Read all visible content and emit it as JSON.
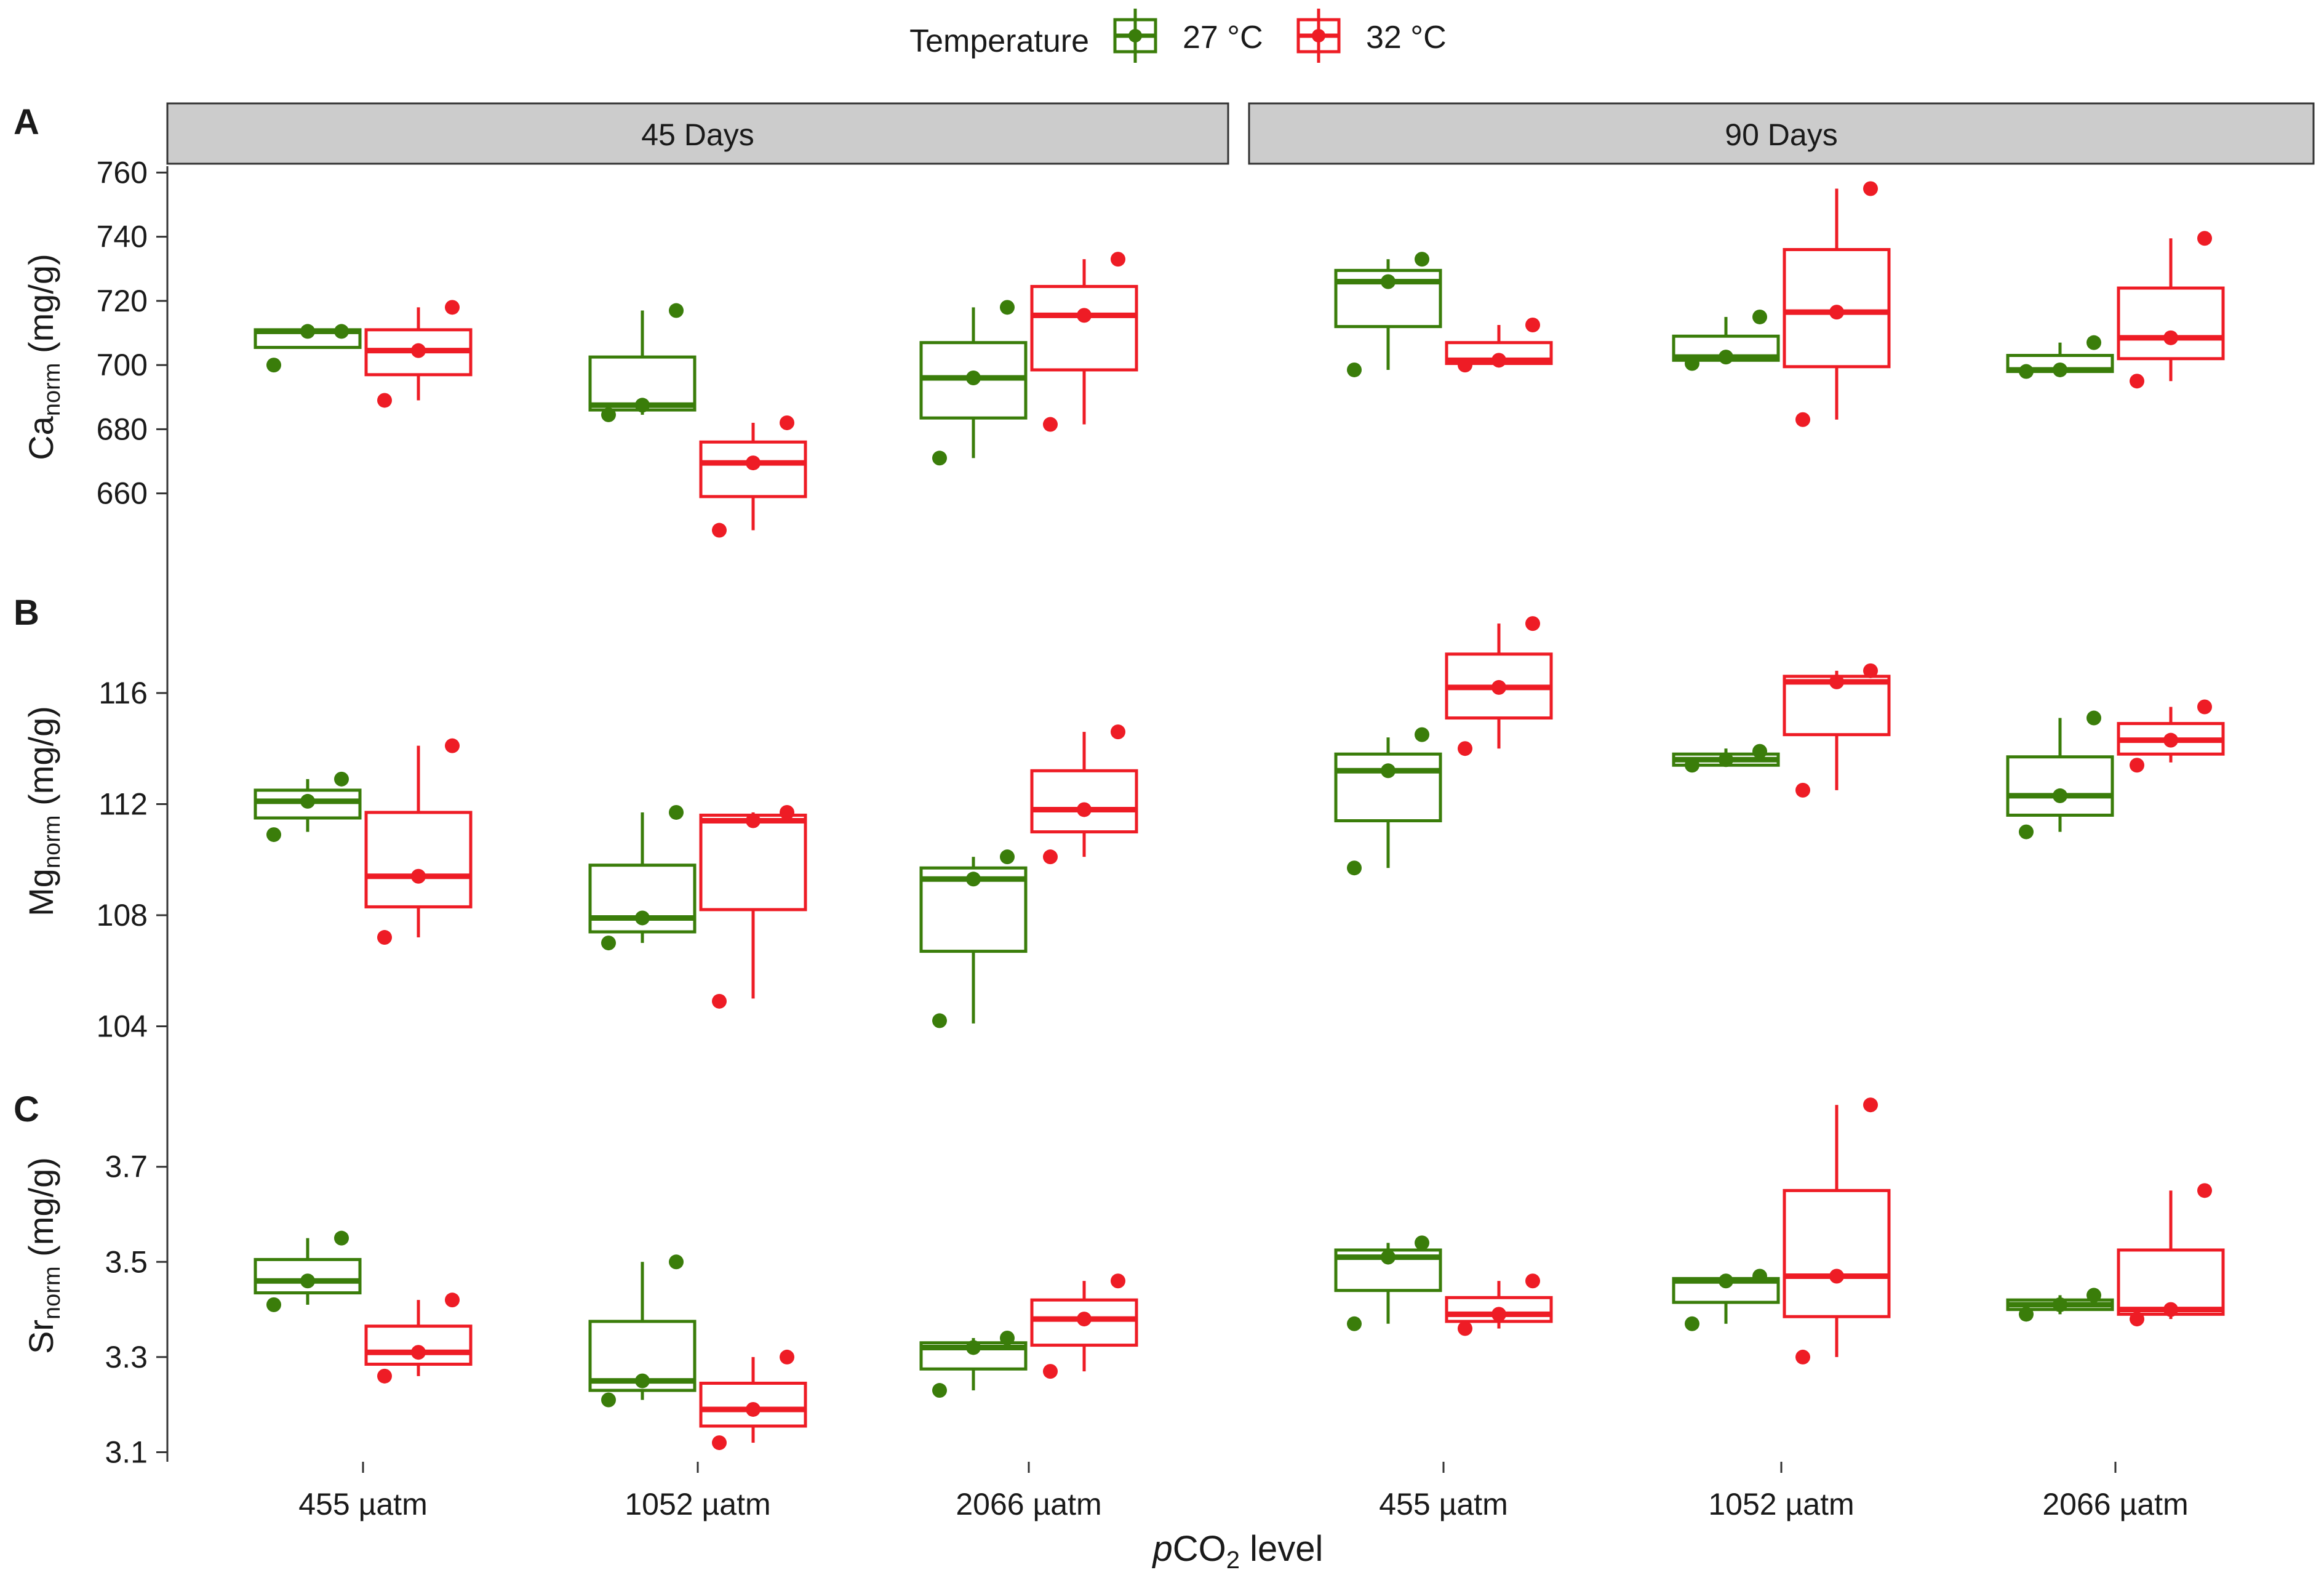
{
  "chart_data": {
    "type": "boxplot",
    "x_title_italic": "p",
    "x_title_main": "CO",
    "x_title_sub": "2",
    "x_title_tail": " level",
    "legend": {
      "title": "Temperature",
      "entries": [
        {
          "label": "27 °C",
          "color": "#3a7d0a"
        },
        {
          "label": "32 °C",
          "color": "#ee1c25"
        }
      ]
    },
    "facets": [
      "45 Days",
      "90 Days"
    ],
    "categories": [
      "455 µatm",
      "1052 µatm",
      "2066 µatm"
    ],
    "panels": [
      {
        "label": "A",
        "ylabel_main": "Ca",
        "ylabel_sub": "norm",
        "ylabel_tail": " (mg/g)",
        "ylim": [
          644,
          762
        ],
        "yticks": [
          660,
          680,
          700,
          720,
          740,
          760
        ],
        "ytick_labels": [
          "660",
          "680",
          "700",
          "720",
          "740",
          "760"
        ],
        "boxes": [
          [
            [
              {
                "q1": 705.5,
                "med": 710.5,
                "q3": 711,
                "lo": 705.5,
                "hi": 711,
                "pts": [
                  700,
                  710.5,
                  710.5
                ]
              },
              {
                "q1": 697,
                "med": 704.5,
                "q3": 711,
                "lo": 689,
                "hi": 718,
                "pts": [
                  689,
                  704.5,
                  718
                ]
              }
            ],
            [
              {
                "q1": 686,
                "med": 687.5,
                "q3": 702.5,
                "lo": 684.5,
                "hi": 717,
                "pts": [
                  684.5,
                  687.5,
                  717
                ]
              },
              {
                "q1": 659,
                "med": 669.5,
                "q3": 676,
                "lo": 648.5,
                "hi": 682,
                "pts": [
                  648.5,
                  669.5,
                  682
                ]
              }
            ],
            [
              {
                "q1": 683.5,
                "med": 696,
                "q3": 707,
                "lo": 671,
                "hi": 718,
                "pts": [
                  671,
                  696,
                  718
                ]
              },
              {
                "q1": 698.5,
                "med": 715.5,
                "q3": 724.5,
                "lo": 681.5,
                "hi": 733,
                "pts": [
                  681.5,
                  715.5,
                  733
                ]
              }
            ]
          ],
          [
            [
              {
                "q1": 712,
                "med": 726,
                "q3": 729.5,
                "lo": 698.5,
                "hi": 733,
                "pts": [
                  698.5,
                  726,
                  733
                ]
              },
              {
                "q1": 700.5,
                "med": 701.5,
                "q3": 707,
                "lo": 700,
                "hi": 712.5,
                "pts": [
                  700,
                  701.5,
                  712.5
                ]
              }
            ],
            [
              {
                "q1": 701.5,
                "med": 702.5,
                "q3": 709,
                "lo": 700.5,
                "hi": 715,
                "pts": [
                  700.5,
                  702.5,
                  715
                ]
              },
              {
                "q1": 699.5,
                "med": 716.5,
                "q3": 736,
                "lo": 683,
                "hi": 755,
                "pts": [
                  683,
                  716.5,
                  755
                ]
              }
            ],
            [
              {
                "q1": 698,
                "med": 698.5,
                "q3": 703,
                "lo": 698,
                "hi": 707,
                "pts": [
                  698,
                  698.5,
                  707
                ]
              },
              {
                "q1": 702,
                "med": 708.5,
                "q3": 724,
                "lo": 695,
                "hi": 739.5,
                "pts": [
                  695,
                  708.5,
                  739.5
                ]
              }
            ]
          ]
        ]
      },
      {
        "label": "B",
        "ylabel_main": "Mg",
        "ylabel_sub": "norm",
        "ylabel_tail": " (mg/g)",
        "ylim": [
          103.5,
          119.5
        ],
        "yticks": [
          104,
          108,
          112,
          116
        ],
        "ytick_labels": [
          "104",
          "108",
          "112",
          "116"
        ],
        "boxes": [
          [
            [
              {
                "q1": 111.5,
                "med": 112.1,
                "q3": 112.5,
                "lo": 111,
                "hi": 112.9,
                "pts": [
                  110.9,
                  112.1,
                  112.9
                ]
              },
              {
                "q1": 108.3,
                "med": 109.4,
                "q3": 111.7,
                "lo": 107.2,
                "hi": 114.1,
                "pts": [
                  107.2,
                  109.4,
                  114.1
                ]
              }
            ],
            [
              {
                "q1": 107.4,
                "med": 107.9,
                "q3": 109.8,
                "lo": 107,
                "hi": 111.7,
                "pts": [
                  107,
                  107.9,
                  111.7
                ]
              },
              {
                "q1": 108.2,
                "med": 111.4,
                "q3": 111.6,
                "lo": 105,
                "hi": 111.7,
                "pts": [
                  104.9,
                  111.4,
                  111.7
                ]
              }
            ],
            [
              {
                "q1": 106.7,
                "med": 109.3,
                "q3": 109.7,
                "lo": 104.1,
                "hi": 110.1,
                "pts": [
                  104.2,
                  109.3,
                  110.1
                ]
              },
              {
                "q1": 111,
                "med": 111.8,
                "q3": 113.2,
                "lo": 110.1,
                "hi": 114.6,
                "pts": [
                  110.1,
                  111.8,
                  114.6
                ]
              }
            ]
          ],
          [
            [
              {
                "q1": 111.4,
                "med": 113.2,
                "q3": 113.8,
                "lo": 109.7,
                "hi": 114.4,
                "pts": [
                  109.7,
                  113.2,
                  114.5
                ]
              },
              {
                "q1": 115.1,
                "med": 116.2,
                "q3": 117.4,
                "lo": 114,
                "hi": 118.5,
                "pts": [
                  114,
                  116.2,
                  118.5
                ]
              }
            ],
            [
              {
                "q1": 113.4,
                "med": 113.6,
                "q3": 113.8,
                "lo": 113.4,
                "hi": 114,
                "pts": [
                  113.4,
                  113.6,
                  113.9
                ]
              },
              {
                "q1": 114.5,
                "med": 116.4,
                "q3": 116.6,
                "lo": 112.5,
                "hi": 116.8,
                "pts": [
                  112.5,
                  116.4,
                  116.8
                ]
              }
            ],
            [
              {
                "q1": 111.6,
                "med": 112.3,
                "q3": 113.7,
                "lo": 111,
                "hi": 115.1,
                "pts": [
                  111,
                  112.3,
                  115.1
                ]
              },
              {
                "q1": 113.8,
                "med": 114.3,
                "q3": 114.9,
                "lo": 113.5,
                "hi": 115.5,
                "pts": [
                  113.4,
                  114.3,
                  115.5
                ]
              }
            ]
          ]
        ]
      },
      {
        "label": "C",
        "ylabel_main": "Sr",
        "ylabel_sub": "norm",
        "ylabel_tail": " (mg/g)",
        "ylim": [
          3.08,
          3.86
        ],
        "yticks": [
          3.1,
          3.3,
          3.5,
          3.7
        ],
        "ytick_labels": [
          "3.1",
          "3.3",
          "3.5",
          "3.7"
        ],
        "boxes": [
          [
            [
              {
                "q1": 3.435,
                "med": 3.46,
                "q3": 3.505,
                "lo": 3.41,
                "hi": 3.55,
                "pts": [
                  3.41,
                  3.46,
                  3.55
                ]
              },
              {
                "q1": 3.285,
                "med": 3.31,
                "q3": 3.365,
                "lo": 3.26,
                "hi": 3.42,
                "pts": [
                  3.26,
                  3.31,
                  3.42
                ]
              }
            ],
            [
              {
                "q1": 3.23,
                "med": 3.25,
                "q3": 3.375,
                "lo": 3.21,
                "hi": 3.5,
                "pts": [
                  3.21,
                  3.25,
                  3.5
                ]
              },
              {
                "q1": 3.155,
                "med": 3.19,
                "q3": 3.245,
                "lo": 3.12,
                "hi": 3.3,
                "pts": [
                  3.12,
                  3.19,
                  3.3
                ]
              }
            ],
            [
              {
                "q1": 3.275,
                "med": 3.32,
                "q3": 3.33,
                "lo": 3.23,
                "hi": 3.34,
                "pts": [
                  3.23,
                  3.32,
                  3.34
                ]
              },
              {
                "q1": 3.325,
                "med": 3.38,
                "q3": 3.42,
                "lo": 3.27,
                "hi": 3.46,
                "pts": [
                  3.27,
                  3.38,
                  3.46
                ]
              }
            ]
          ],
          [
            [
              {
                "q1": 3.44,
                "med": 3.51,
                "q3": 3.525,
                "lo": 3.37,
                "hi": 3.54,
                "pts": [
                  3.37,
                  3.51,
                  3.54
                ]
              },
              {
                "q1": 3.375,
                "med": 3.39,
                "q3": 3.425,
                "lo": 3.36,
                "hi": 3.46,
                "pts": [
                  3.36,
                  3.39,
                  3.46
                ]
              }
            ],
            [
              {
                "q1": 3.415,
                "med": 3.46,
                "q3": 3.465,
                "lo": 3.37,
                "hi": 3.47,
                "pts": [
                  3.37,
                  3.46,
                  3.47
                ]
              },
              {
                "q1": 3.385,
                "med": 3.47,
                "q3": 3.65,
                "lo": 3.3,
                "hi": 3.83,
                "pts": [
                  3.3,
                  3.47,
                  3.83
                ]
              }
            ],
            [
              {
                "q1": 3.4,
                "med": 3.41,
                "q3": 3.42,
                "lo": 3.39,
                "hi": 3.43,
                "pts": [
                  3.39,
                  3.41,
                  3.43
                ]
              },
              {
                "q1": 3.39,
                "med": 3.4,
                "q3": 3.525,
                "lo": 3.38,
                "hi": 3.65,
                "pts": [
                  3.38,
                  3.4,
                  3.65
                ]
              }
            ]
          ]
        ]
      }
    ]
  }
}
